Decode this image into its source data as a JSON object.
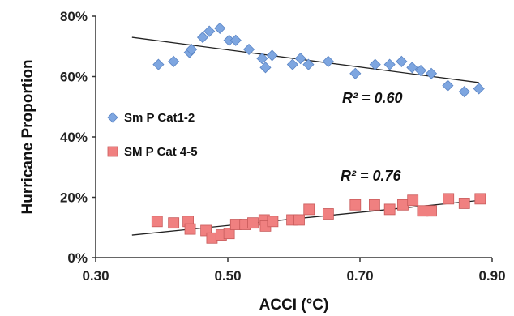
{
  "chart_data": {
    "type": "scatter",
    "title": "",
    "xlabel": "ACCI (°C)",
    "ylabel": "Hurricane Proportion",
    "xlim": [
      0.3,
      0.9
    ],
    "ylim": [
      0,
      80
    ],
    "x_ticks": [
      "0.30",
      "0.50",
      "0.70",
      "0.90"
    ],
    "y_ticks": [
      "0%",
      "20%",
      "40%",
      "60%",
      "80%"
    ],
    "grid": false,
    "legend_position": "left",
    "series": [
      {
        "name": "Sm P Cat1-2",
        "color": "#7ea6e0",
        "marker": "diamond",
        "points": [
          [
            0.395,
            64
          ],
          [
            0.418,
            65
          ],
          [
            0.442,
            68
          ],
          [
            0.445,
            69
          ],
          [
            0.462,
            73
          ],
          [
            0.472,
            75
          ],
          [
            0.488,
            76
          ],
          [
            0.502,
            72
          ],
          [
            0.512,
            72
          ],
          [
            0.532,
            69
          ],
          [
            0.552,
            66
          ],
          [
            0.557,
            63
          ],
          [
            0.567,
            67
          ],
          [
            0.598,
            64
          ],
          [
            0.61,
            66
          ],
          [
            0.622,
            64
          ],
          [
            0.652,
            65
          ],
          [
            0.693,
            61
          ],
          [
            0.723,
            64
          ],
          [
            0.745,
            64
          ],
          [
            0.763,
            65
          ],
          [
            0.779,
            63
          ],
          [
            0.792,
            62
          ],
          [
            0.808,
            61
          ],
          [
            0.833,
            57
          ],
          [
            0.858,
            55
          ],
          [
            0.88,
            56
          ]
        ],
        "trendline": {
          "x": [
            0.355,
            0.88
          ],
          "y": [
            73,
            58
          ]
        },
        "r_squared_label": "R² = 0.60"
      },
      {
        "name": "SM P Cat 4-5",
        "color": "#f08080",
        "marker": "square",
        "points": [
          [
            0.393,
            12
          ],
          [
            0.418,
            11.5
          ],
          [
            0.44,
            12
          ],
          [
            0.443,
            9.5
          ],
          [
            0.467,
            9
          ],
          [
            0.476,
            6.5
          ],
          [
            0.49,
            7.5
          ],
          [
            0.502,
            8
          ],
          [
            0.512,
            11
          ],
          [
            0.526,
            11
          ],
          [
            0.538,
            11.5
          ],
          [
            0.555,
            12.5
          ],
          [
            0.557,
            10.5
          ],
          [
            0.568,
            12
          ],
          [
            0.597,
            12.5
          ],
          [
            0.608,
            12.5
          ],
          [
            0.623,
            16
          ],
          [
            0.652,
            14.5
          ],
          [
            0.693,
            17.5
          ],
          [
            0.722,
            17.5
          ],
          [
            0.745,
            16
          ],
          [
            0.765,
            17.5
          ],
          [
            0.78,
            19
          ],
          [
            0.795,
            15.5
          ],
          [
            0.808,
            15.5
          ],
          [
            0.834,
            19.5
          ],
          [
            0.858,
            18
          ],
          [
            0.882,
            19.5
          ]
        ],
        "trendline": {
          "x": [
            0.355,
            0.882
          ],
          "y": [
            7.5,
            19
          ]
        },
        "r_squared_label": "R² = 0.76"
      }
    ]
  }
}
